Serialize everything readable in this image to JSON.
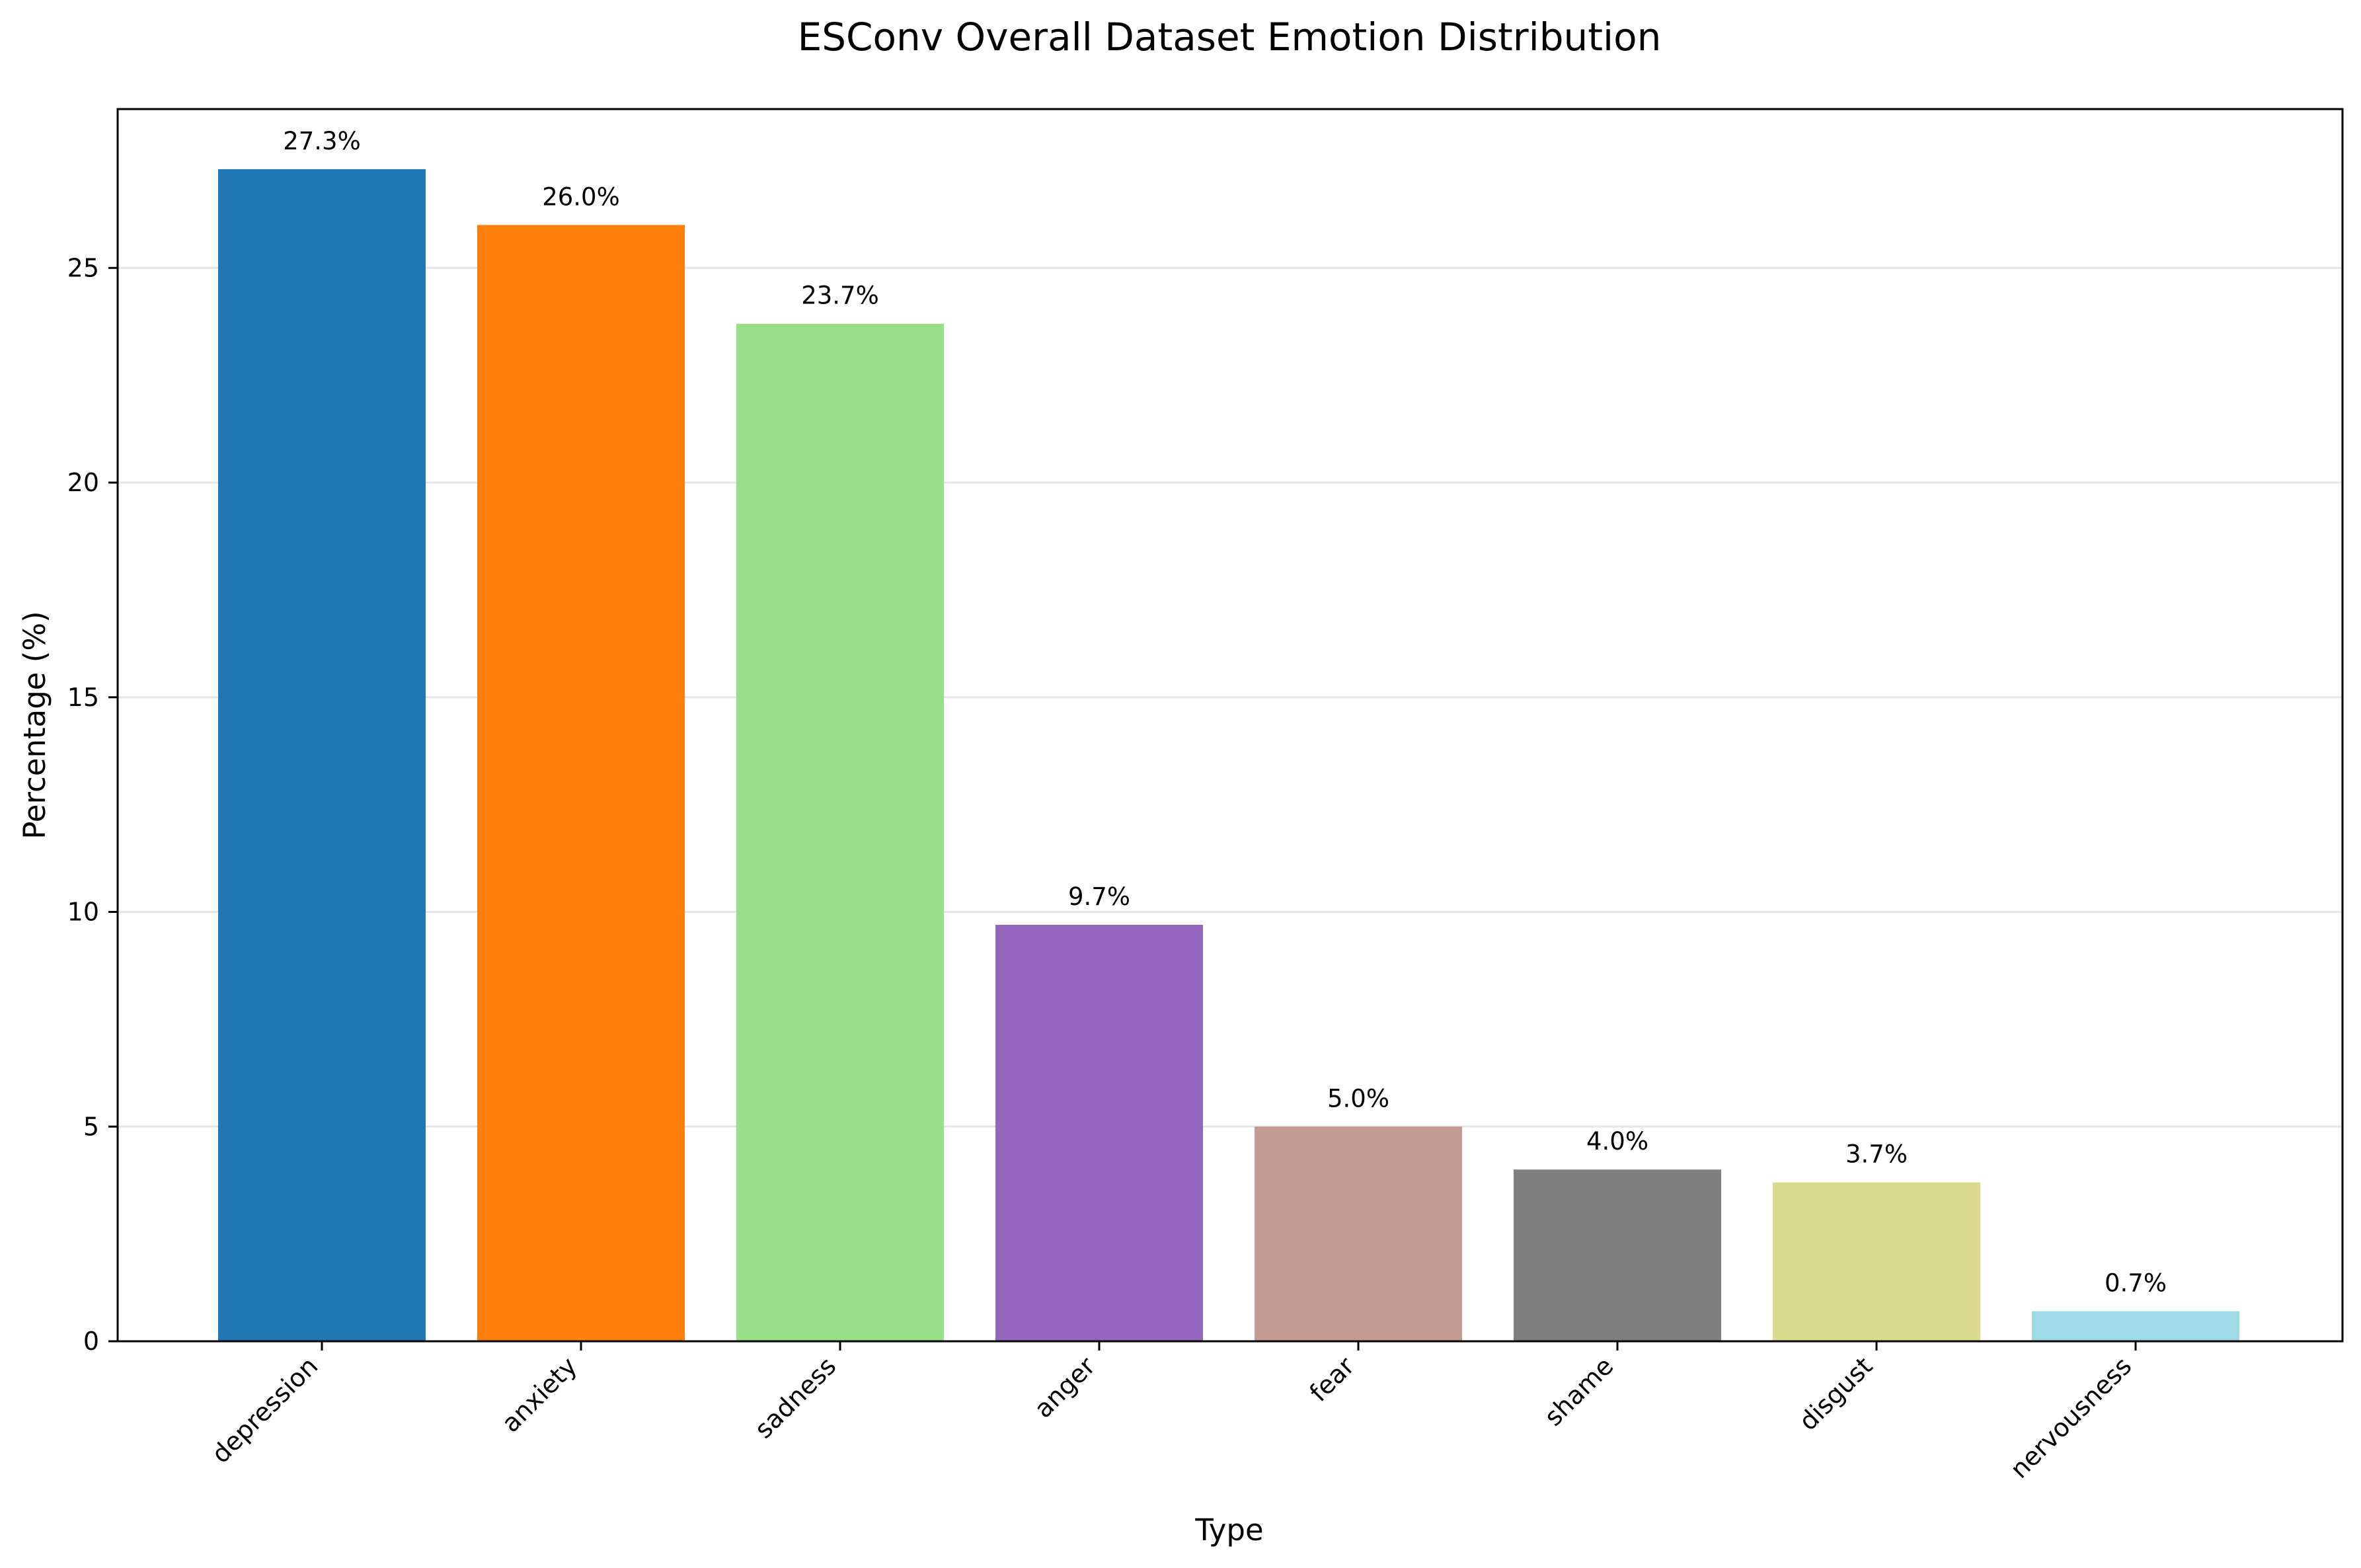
{
  "chart_data": {
    "type": "bar",
    "title": "ESConv Overall Dataset Emotion Distribution",
    "xlabel": "Type",
    "ylabel": "Percentage (%)",
    "categories": [
      "depression",
      "anxiety",
      "sadness",
      "anger",
      "fear",
      "shame",
      "disgust",
      "nervousness"
    ],
    "values": [
      27.3,
      26.0,
      23.7,
      9.7,
      5.0,
      4.0,
      3.7,
      0.7
    ],
    "value_labels": [
      "27.3%",
      "26.0%",
      "23.7%",
      "9.7%",
      "5.0%",
      "4.0%",
      "3.7%",
      "0.7%"
    ],
    "colors": [
      "#1f77b4",
      "#ff7f0e",
      "#98df8a",
      "#9467bd",
      "#c49c94",
      "#7f7f7f",
      "#dbdb8d",
      "#9edae5"
    ],
    "ylim": [
      0,
      28.7
    ],
    "yticks": [
      0,
      5,
      10,
      15,
      20,
      25
    ],
    "grid": "y",
    "legend": "none"
  }
}
